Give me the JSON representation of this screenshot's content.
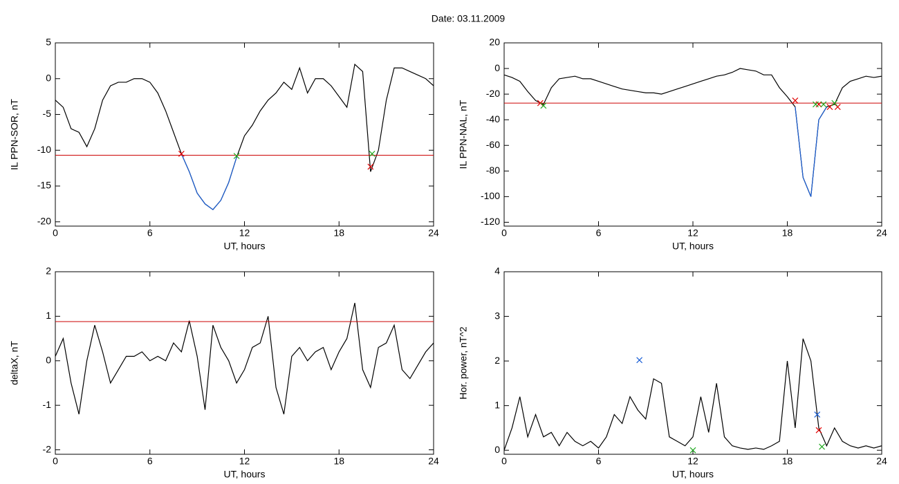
{
  "title": "Date:  03.11.2009",
  "chart_data": [
    {
      "type": "line",
      "xlabel": "UT, hours",
      "ylabel": "IL PPN-SOR, nT",
      "x": [
        0,
        0.5,
        1,
        1.5,
        2,
        2.5,
        3,
        3.5,
        4,
        4.5,
        5,
        5.5,
        6,
        6.5,
        7,
        7.5,
        8,
        8.5,
        9,
        9.5,
        10,
        10.5,
        11,
        11.5,
        12,
        12.5,
        13,
        13.5,
        14,
        14.5,
        15,
        15.5,
        16,
        16.5,
        17,
        17.5,
        18,
        18.5,
        19,
        19.5,
        20,
        20.5,
        21,
        21.5,
        22,
        22.5,
        23,
        23.5,
        24
      ],
      "xlim": [
        0,
        24
      ],
      "xticks": [
        0,
        6,
        12,
        18,
        24
      ],
      "ylim": [
        -20.6,
        5
      ],
      "yticks": [
        5,
        0,
        -5,
        -10,
        -15,
        -20
      ],
      "series": [
        {
          "color": "#000000",
          "values": [
            -3,
            -4,
            -7,
            -7.5,
            -9.5,
            -7,
            -3,
            -1,
            -0.5,
            -0.5,
            0,
            0,
            -0.5,
            -2,
            -4.5,
            -7.5,
            -10.5,
            -13,
            -16,
            -17.5,
            -18.3,
            -17,
            -14.5,
            -11,
            -8,
            -6.5,
            -4.5,
            -3,
            -2,
            -0.5,
            -1.5,
            1.5,
            -2,
            0,
            0,
            -1,
            -2.5,
            -4,
            2,
            1,
            -13,
            -10,
            -3,
            1.5,
            1.5,
            1,
            0.5,
            0,
            -1
          ]
        },
        {
          "color": "#1a5fd6",
          "values": [
            null,
            null,
            null,
            null,
            null,
            null,
            null,
            null,
            null,
            null,
            null,
            null,
            null,
            null,
            null,
            null,
            -10.5,
            -13,
            -16,
            -17.5,
            -18.3,
            -17,
            -14.5,
            -11,
            null,
            null,
            null,
            null,
            null,
            null,
            null,
            null,
            null,
            null,
            null,
            null,
            null,
            null,
            null,
            null,
            -13,
            null,
            null,
            null,
            null,
            null,
            null,
            null,
            null
          ]
        }
      ],
      "threshold": {
        "value": -10.7,
        "color": "#cc0000"
      },
      "markers": [
        {
          "color": "#e00000",
          "x": [
            8.0,
            20.0
          ],
          "y": [
            -10.5,
            -12.3
          ]
        },
        {
          "color": "#22aa22",
          "x": [
            11.5,
            20.1
          ],
          "y": [
            -10.8,
            -10.5
          ]
        }
      ]
    },
    {
      "type": "line",
      "xlabel": "UT, hours",
      "ylabel": "IL PPN-NAL, nT",
      "x": [
        0,
        0.5,
        1,
        1.5,
        2,
        2.5,
        3,
        3.5,
        4,
        4.5,
        5,
        5.5,
        6,
        6.5,
        7,
        7.5,
        8,
        8.5,
        9,
        9.5,
        10,
        10.5,
        11,
        11.5,
        12,
        12.5,
        13,
        13.5,
        14,
        14.5,
        15,
        15.5,
        16,
        16.5,
        17,
        17.5,
        18,
        18.5,
        19,
        19.5,
        20,
        20.5,
        21,
        21.5,
        22,
        22.5,
        23,
        23.5,
        24
      ],
      "xlim": [
        0,
        24
      ],
      "xticks": [
        0,
        6,
        12,
        18,
        24
      ],
      "ylim": [
        -123,
        20
      ],
      "yticks": [
        20,
        0,
        -20,
        -40,
        -60,
        -80,
        -100,
        -120
      ],
      "series": [
        {
          "color": "#000000",
          "values": [
            -5,
            -7,
            -10,
            -18,
            -25,
            -28,
            -15,
            -8,
            -7,
            -6,
            -8,
            -8,
            -10,
            -12,
            -14,
            -16,
            -17,
            -18,
            -19,
            -19,
            -20,
            -18,
            -16,
            -14,
            -12,
            -10,
            -8,
            -6,
            -5,
            -3,
            0,
            -1,
            -2,
            -5,
            -5,
            -15,
            -22,
            -30,
            -85,
            -100,
            -40,
            -30,
            -28,
            -15,
            -10,
            -8,
            -6,
            -7,
            -6
          ]
        },
        {
          "color": "#1a5fd6",
          "values": [
            null,
            null,
            null,
            null,
            null,
            null,
            null,
            null,
            null,
            null,
            null,
            null,
            null,
            null,
            null,
            null,
            null,
            null,
            null,
            null,
            null,
            null,
            null,
            null,
            null,
            null,
            null,
            null,
            null,
            null,
            null,
            null,
            null,
            null,
            null,
            null,
            null,
            -30,
            -85,
            -100,
            -40,
            -30,
            null,
            null,
            null,
            null,
            null,
            null,
            null
          ]
        }
      ],
      "threshold": {
        "value": -27,
        "color": "#cc0000"
      },
      "markers": [
        {
          "color": "#e00000",
          "x": [
            2.3,
            18.5,
            20.0,
            20.7,
            21.2
          ],
          "y": [
            -27,
            -25,
            -28,
            -30,
            -30
          ]
        },
        {
          "color": "#22aa22",
          "x": [
            2.5,
            19.8,
            20.3,
            21.0
          ],
          "y": [
            -29,
            -28,
            -28,
            -27
          ]
        }
      ]
    },
    {
      "type": "line",
      "xlabel": "UT, hours",
      "ylabel": "deltaX, nT",
      "x": [
        0,
        0.5,
        1,
        1.5,
        2,
        2.5,
        3,
        3.5,
        4,
        4.5,
        5,
        5.5,
        6,
        6.5,
        7,
        7.5,
        8,
        8.5,
        9,
        9.5,
        10,
        10.5,
        11,
        11.5,
        12,
        12.5,
        13,
        13.5,
        14,
        14.5,
        15,
        15.5,
        16,
        16.5,
        17,
        17.5,
        18,
        18.5,
        19,
        19.5,
        20,
        20.5,
        21,
        21.5,
        22,
        22.5,
        23,
        23.5,
        24
      ],
      "xlim": [
        0,
        24
      ],
      "xticks": [
        0,
        6,
        12,
        18,
        24
      ],
      "ylim": [
        -2.1,
        2
      ],
      "yticks": [
        2,
        1,
        0,
        -1,
        -2
      ],
      "series": [
        {
          "color": "#000000",
          "values": [
            0.1,
            0.5,
            -0.5,
            -1.2,
            0,
            0.8,
            0.2,
            -0.5,
            -0.2,
            0.1,
            0.1,
            0.2,
            0,
            0.1,
            0,
            0.4,
            0.2,
            0.9,
            0.1,
            -1.1,
            0.8,
            0.3,
            0,
            -0.5,
            -0.2,
            0.3,
            0.4,
            1.0,
            -0.6,
            -1.2,
            0.1,
            0.3,
            0,
            0.2,
            0.3,
            -0.2,
            0.2,
            0.5,
            1.3,
            -0.2,
            -0.6,
            0.3,
            0.4,
            0.8,
            -0.2,
            -0.4,
            -0.1,
            0.2,
            0.4
          ]
        }
      ],
      "threshold": {
        "value": 0.88,
        "color": "#cc0000"
      },
      "markers": []
    },
    {
      "type": "line",
      "xlabel": "UT, hours",
      "ylabel": "Hor. power, nT^2",
      "x": [
        0,
        0.5,
        1,
        1.5,
        2,
        2.5,
        3,
        3.5,
        4,
        4.5,
        5,
        5.5,
        6,
        6.5,
        7,
        7.5,
        8,
        8.5,
        9,
        9.5,
        10,
        10.5,
        11,
        11.5,
        12,
        12.5,
        13,
        13.5,
        14,
        14.5,
        15,
        15.5,
        16,
        16.5,
        17,
        17.5,
        18,
        18.5,
        19,
        19.5,
        20,
        20.5,
        21,
        21.5,
        22,
        22.5,
        23,
        23.5,
        24
      ],
      "xlim": [
        0,
        24
      ],
      "xticks": [
        0,
        6,
        12,
        18,
        24
      ],
      "ylim": [
        -0.09,
        4
      ],
      "yticks": [
        4,
        3,
        2,
        1,
        0
      ],
      "series": [
        {
          "color": "#000000",
          "values": [
            0,
            0.5,
            1.2,
            0.3,
            0.8,
            0.3,
            0.4,
            0.1,
            0.4,
            0.2,
            0.1,
            0.2,
            0.05,
            0.3,
            0.8,
            0.6,
            1.2,
            0.9,
            0.7,
            1.6,
            1.5,
            0.3,
            0.2,
            0.1,
            0.3,
            1.2,
            0.4,
            1.5,
            0.3,
            0.1,
            0.05,
            0.02,
            0.05,
            0.02,
            0.1,
            0.2,
            2.0,
            0.5,
            2.5,
            2.0,
            0.5,
            0.1,
            0.5,
            0.2,
            0.1,
            0.05,
            0.1,
            0.05,
            0.1
          ]
        }
      ],
      "markers": [
        {
          "color": "#1a5fd6",
          "x": [
            8.6,
            19.9
          ],
          "y": [
            2.02,
            0.8
          ]
        },
        {
          "color": "#e00000",
          "x": [
            20.0
          ],
          "y": [
            0.45
          ]
        },
        {
          "color": "#22aa22",
          "x": [
            12.0,
            20.2
          ],
          "y": [
            0.0,
            0.08
          ]
        }
      ]
    }
  ]
}
